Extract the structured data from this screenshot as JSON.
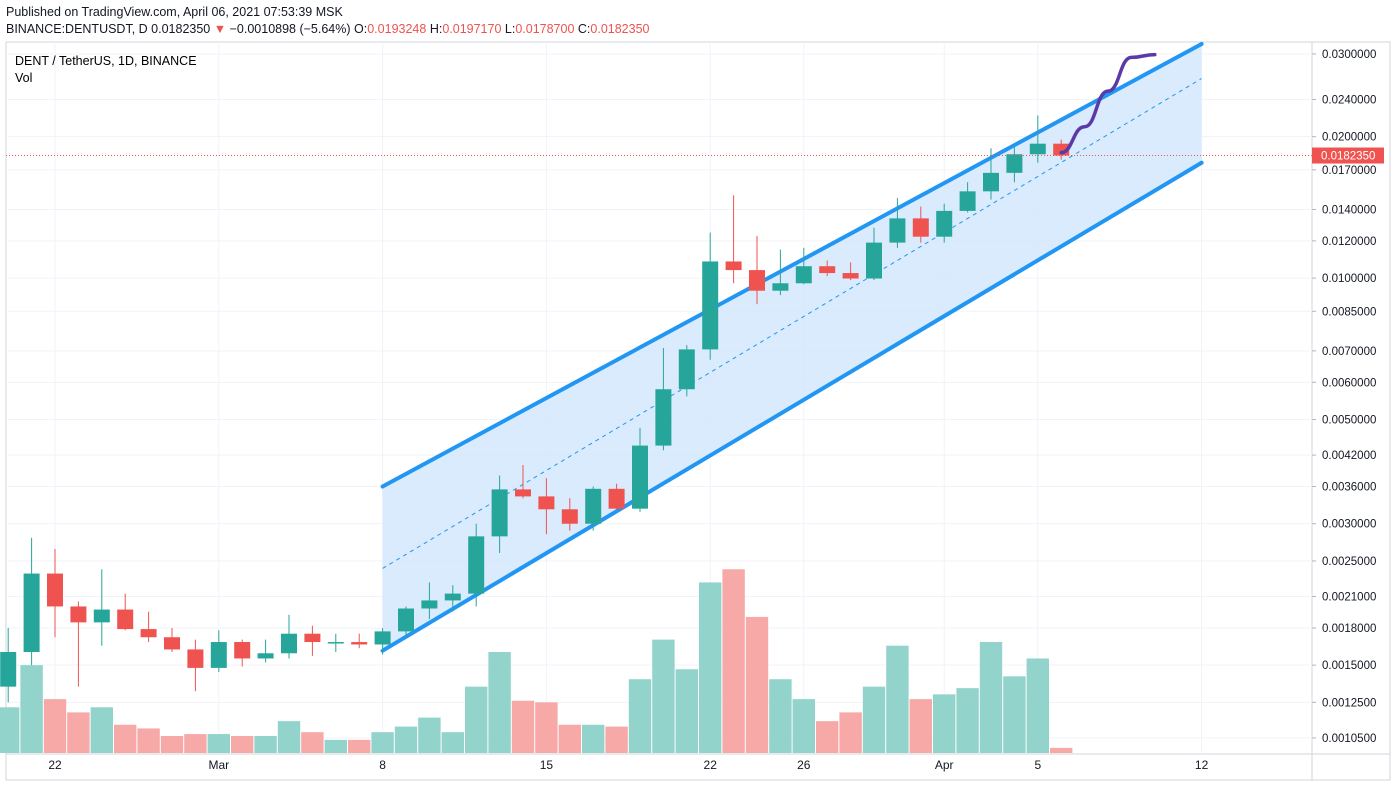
{
  "header": {
    "published": "Published on TradingView.com, April 06, 2021 07:53:39 MSK",
    "symbol": "BINANCE:DENTUSDT, D",
    "last": "0.0182350",
    "down_arrow": "▼",
    "change": "−0.0010898 (−5.64%)",
    "o_label": "O:",
    "o_value": "0.0193248",
    "h_label": "H:",
    "h_value": "0.0197170",
    "l_label": "L:",
    "l_value": "0.0178700",
    "c_label": "C:",
    "c_value": "0.0182350"
  },
  "legend": {
    "title": "DENT / TetherUS, 1D, BINANCE",
    "volume": "Vol"
  },
  "colors": {
    "up": "#26a69a",
    "down": "#ef5350",
    "vol_up": "#92d3cc",
    "vol_down": "#f7a9a7",
    "channel_line": "#2196f3",
    "channel_fill": "#d2e7fb",
    "projection": "#5a3aa8",
    "price_line": "#ef5350"
  },
  "chart_data": {
    "type": "candlestick",
    "y_scale": "log",
    "ylim": [
      0.00098,
      0.0315
    ],
    "y_ticks": [
      "0.0300000",
      "0.0240000",
      "0.0200000",
      "0.0170000",
      "0.0140000",
      "0.0120000",
      "0.0100000",
      "0.0085000",
      "0.0070000",
      "0.0060000",
      "0.0050000",
      "0.0042000",
      "0.0036000",
      "0.0030000",
      "0.0025000",
      "0.0021000",
      "0.0018000",
      "0.0015000",
      "0.0012500",
      "0.0010500"
    ],
    "x_ticks": [
      {
        "label": "22",
        "date": "2021-02-22"
      },
      {
        "label": "Mar",
        "date": "2021-03-01"
      },
      {
        "label": "8",
        "date": "2021-03-08"
      },
      {
        "label": "15",
        "date": "2021-03-15"
      },
      {
        "label": "22",
        "date": "2021-03-22"
      },
      {
        "label": "26",
        "date": "2021-03-26"
      },
      {
        "label": "Apr",
        "date": "2021-04-01"
      },
      {
        "label": "5",
        "date": "2021-04-05"
      },
      {
        "label": "12",
        "date": "2021-04-12"
      }
    ],
    "last_price_label": "0.0182350",
    "candles": [
      {
        "date": "2021-02-20",
        "o": 0.00135,
        "h": 0.0018,
        "l": 0.00125,
        "c": 0.0016,
        "v": 0.00122
      },
      {
        "date": "2021-02-21",
        "o": 0.0016,
        "h": 0.0028,
        "l": 0.0015,
        "c": 0.00235,
        "v": 0.0015
      },
      {
        "date": "2021-02-22",
        "o": 0.00235,
        "h": 0.00265,
        "l": 0.00172,
        "c": 0.002,
        "v": 0.00127
      },
      {
        "date": "2021-02-23",
        "o": 0.002,
        "h": 0.00205,
        "l": 0.00135,
        "c": 0.00185,
        "v": 0.00119
      },
      {
        "date": "2021-02-24",
        "o": 0.00185,
        "h": 0.0024,
        "l": 0.00165,
        "c": 0.00197,
        "v": 0.00122
      },
      {
        "date": "2021-02-25",
        "o": 0.00197,
        "h": 0.00213,
        "l": 0.00178,
        "c": 0.00179,
        "v": 0.00112
      },
      {
        "date": "2021-02-26",
        "o": 0.00179,
        "h": 0.00195,
        "l": 0.00168,
        "c": 0.00172,
        "v": 0.0011
      },
      {
        "date": "2021-02-27",
        "o": 0.00172,
        "h": 0.0018,
        "l": 0.0016,
        "c": 0.00162,
        "v": 0.00106
      },
      {
        "date": "2021-02-28",
        "o": 0.00162,
        "h": 0.0017,
        "l": 0.00132,
        "c": 0.00148,
        "v": 0.00107
      },
      {
        "date": "2021-03-01",
        "o": 0.00148,
        "h": 0.00178,
        "l": 0.00145,
        "c": 0.00168,
        "v": 0.00107
      },
      {
        "date": "2021-03-02",
        "o": 0.00168,
        "h": 0.0017,
        "l": 0.00149,
        "c": 0.00155,
        "v": 0.00106
      },
      {
        "date": "2021-03-03",
        "o": 0.00155,
        "h": 0.0017,
        "l": 0.00152,
        "c": 0.00159,
        "v": 0.00106
      },
      {
        "date": "2021-03-04",
        "o": 0.00159,
        "h": 0.00192,
        "l": 0.00155,
        "c": 0.00175,
        "v": 0.00114
      },
      {
        "date": "2021-03-05",
        "o": 0.00175,
        "h": 0.00182,
        "l": 0.00157,
        "c": 0.00168,
        "v": 0.00108
      },
      {
        "date": "2021-03-06",
        "o": 0.00168,
        "h": 0.00175,
        "l": 0.0016,
        "c": 0.00168,
        "v": 0.00104
      },
      {
        "date": "2021-03-07",
        "o": 0.00168,
        "h": 0.00175,
        "l": 0.00163,
        "c": 0.00166,
        "v": 0.00104
      },
      {
        "date": "2021-03-08",
        "o": 0.00166,
        "h": 0.0018,
        "l": 0.00158,
        "c": 0.00177,
        "v": 0.00108
      },
      {
        "date": "2021-03-09",
        "o": 0.00177,
        "h": 0.002,
        "l": 0.00172,
        "c": 0.00198,
        "v": 0.00111
      },
      {
        "date": "2021-03-10",
        "o": 0.00198,
        "h": 0.00225,
        "l": 0.00188,
        "c": 0.00206,
        "v": 0.00116
      },
      {
        "date": "2021-03-11",
        "o": 0.00206,
        "h": 0.00222,
        "l": 0.00195,
        "c": 0.00213,
        "v": 0.00108
      },
      {
        "date": "2021-03-12",
        "o": 0.00213,
        "h": 0.003,
        "l": 0.002,
        "c": 0.00282,
        "v": 0.00135
      },
      {
        "date": "2021-03-13",
        "o": 0.00282,
        "h": 0.0038,
        "l": 0.0026,
        "c": 0.00355,
        "v": 0.0016
      },
      {
        "date": "2021-03-14",
        "o": 0.00355,
        "h": 0.004,
        "l": 0.0034,
        "c": 0.00343,
        "v": 0.00126
      },
      {
        "date": "2021-03-15",
        "o": 0.00343,
        "h": 0.00375,
        "l": 0.00285,
        "c": 0.00322,
        "v": 0.00125
      },
      {
        "date": "2021-03-16",
        "o": 0.00322,
        "h": 0.0034,
        "l": 0.0029,
        "c": 0.003,
        "v": 0.00112
      },
      {
        "date": "2021-03-17",
        "o": 0.003,
        "h": 0.0036,
        "l": 0.0029,
        "c": 0.00356,
        "v": 0.00112
      },
      {
        "date": "2021-03-18",
        "o": 0.00356,
        "h": 0.00365,
        "l": 0.0032,
        "c": 0.00323,
        "v": 0.00111
      },
      {
        "date": "2021-03-19",
        "o": 0.00323,
        "h": 0.0048,
        "l": 0.00318,
        "c": 0.0044,
        "v": 0.0014
      },
      {
        "date": "2021-03-20",
        "o": 0.0044,
        "h": 0.0071,
        "l": 0.0043,
        "c": 0.0058,
        "v": 0.0017
      },
      {
        "date": "2021-03-21",
        "o": 0.0058,
        "h": 0.0072,
        "l": 0.0056,
        "c": 0.00705,
        "v": 0.00147
      },
      {
        "date": "2021-03-22",
        "o": 0.00705,
        "h": 0.0125,
        "l": 0.0067,
        "c": 0.01085,
        "v": 0.00225
      },
      {
        "date": "2021-03-23",
        "o": 0.01085,
        "h": 0.015,
        "l": 0.00975,
        "c": 0.0104,
        "v": 0.0024
      },
      {
        "date": "2021-03-24",
        "o": 0.0104,
        "h": 0.0123,
        "l": 0.0088,
        "c": 0.0094,
        "v": 0.0019
      },
      {
        "date": "2021-03-25",
        "o": 0.0094,
        "h": 0.0115,
        "l": 0.0092,
        "c": 0.00975,
        "v": 0.0014
      },
      {
        "date": "2021-03-26",
        "o": 0.00975,
        "h": 0.0116,
        "l": 0.0097,
        "c": 0.0106,
        "v": 0.00127
      },
      {
        "date": "2021-03-27",
        "o": 0.0106,
        "h": 0.0109,
        "l": 0.0101,
        "c": 0.01025,
        "v": 0.00114
      },
      {
        "date": "2021-03-28",
        "o": 0.01025,
        "h": 0.0108,
        "l": 0.0099,
        "c": 0.00998,
        "v": 0.00119
      },
      {
        "date": "2021-03-29",
        "o": 0.00998,
        "h": 0.0128,
        "l": 0.0099,
        "c": 0.0119,
        "v": 0.00135
      },
      {
        "date": "2021-03-30",
        "o": 0.0119,
        "h": 0.0148,
        "l": 0.0116,
        "c": 0.0134,
        "v": 0.00165
      },
      {
        "date": "2021-03-31",
        "o": 0.0134,
        "h": 0.0142,
        "l": 0.0119,
        "c": 0.01225,
        "v": 0.00127
      },
      {
        "date": "2021-04-01",
        "o": 0.01225,
        "h": 0.0144,
        "l": 0.0119,
        "c": 0.0139,
        "v": 0.0013
      },
      {
        "date": "2021-04-02",
        "o": 0.0139,
        "h": 0.016,
        "l": 0.0138,
        "c": 0.0153,
        "v": 0.00134
      },
      {
        "date": "2021-04-03",
        "o": 0.0153,
        "h": 0.0189,
        "l": 0.0147,
        "c": 0.01675,
        "v": 0.00168
      },
      {
        "date": "2021-04-04",
        "o": 0.01675,
        "h": 0.019,
        "l": 0.016,
        "c": 0.01835,
        "v": 0.00142
      },
      {
        "date": "2021-04-05",
        "o": 0.01835,
        "h": 0.0222,
        "l": 0.0176,
        "c": 0.0193248,
        "v": 0.00155
      },
      {
        "date": "2021-04-06",
        "o": 0.0193248,
        "h": 0.019717,
        "l": 0.01787,
        "c": 0.018235,
        "v": 0.001
      }
    ],
    "channel": {
      "start_date": "2021-03-08",
      "end_date": "2021-04-12",
      "upper": [
        0.0036,
        0.0315
      ],
      "lower": [
        0.00161,
        0.0176
      ],
      "middle": [
        0.00241,
        0.0266
      ]
    },
    "projection_path": [
      {
        "date": "2021-04-06",
        "price": 0.0185
      },
      {
        "date": "2021-04-07",
        "price": 0.021
      },
      {
        "date": "2021-04-08",
        "price": 0.025
      },
      {
        "date": "2021-04-09",
        "price": 0.0295
      },
      {
        "date": "2021-04-10",
        "price": 0.0299
      }
    ]
  }
}
